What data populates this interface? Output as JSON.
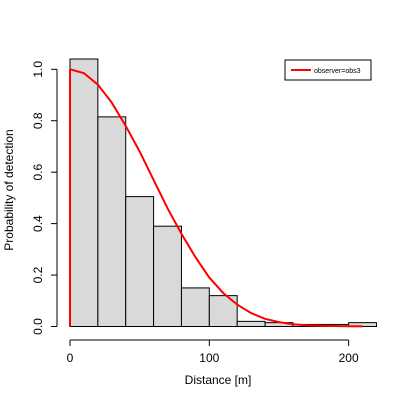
{
  "chart_data": {
    "type": "bar",
    "xlabel": "Distance [m]",
    "ylabel": "Probability of detection",
    "xlim": [
      0,
      220
    ],
    "ylim": [
      0,
      1.04
    ],
    "x_ticks": [
      0,
      100,
      200
    ],
    "y_ticks": [
      0.0,
      0.2,
      0.4,
      0.6,
      0.8,
      1.0
    ],
    "y_tick_labels": [
      "0.0",
      "0.2",
      "0.4",
      "0.6",
      "0.8",
      "1.0"
    ],
    "histogram": {
      "bin_edges": [
        0,
        20,
        40,
        60,
        80,
        100,
        120,
        140,
        160,
        180,
        200,
        220
      ],
      "values": [
        1.04,
        0.815,
        0.505,
        0.39,
        0.15,
        0.12,
        0.02,
        0.015,
        0.008,
        0.008,
        0.015
      ]
    },
    "detection_curve": {
      "name": "observer=obs3",
      "color": "#ff0000",
      "x": [
        0,
        10,
        20,
        30,
        40,
        50,
        60,
        70,
        80,
        90,
        100,
        110,
        120,
        130,
        140,
        150,
        160,
        170,
        180,
        190,
        200,
        210
      ],
      "y": [
        1.0,
        0.985,
        0.94,
        0.87,
        0.78,
        0.68,
        0.57,
        0.46,
        0.36,
        0.27,
        0.19,
        0.13,
        0.085,
        0.052,
        0.03,
        0.017,
        0.009,
        0.005,
        0.003,
        0.002,
        0.001,
        0.0005
      ]
    },
    "legend": {
      "position": "top-right",
      "entries": [
        "observer=obs3"
      ]
    },
    "bar_fill": "#d9d9d9",
    "bar_stroke": "#000000",
    "grid": false
  }
}
